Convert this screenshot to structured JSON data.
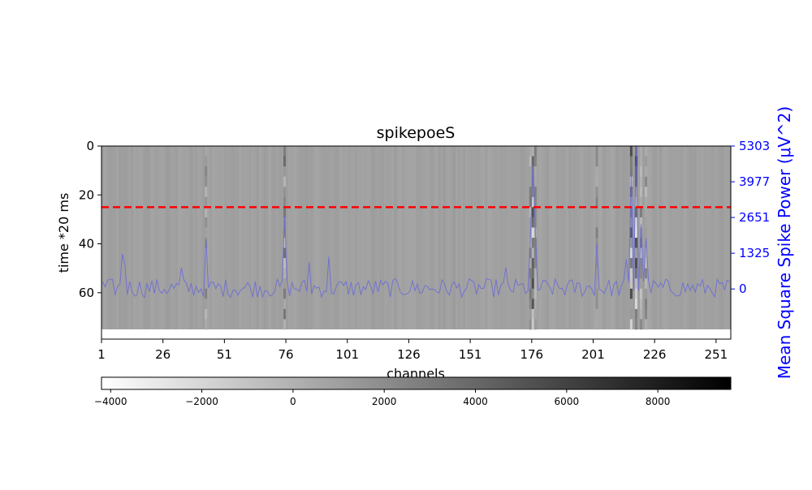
{
  "chart_data": {
    "type": "heatmap",
    "title": "spikepoeS",
    "xlabel": "channels",
    "ylabel": "time *20 ms",
    "y2label": "Mean Square Spike Power (μV^2)",
    "x_ticks": [
      "1",
      "26",
      "51",
      "76",
      "101",
      "126",
      "151",
      "176",
      "201",
      "226",
      "251"
    ],
    "y_ticks": [
      "0",
      "20",
      "40",
      "60"
    ],
    "y2_ticks": [
      "5303",
      "3977",
      "2651",
      "1325",
      "0"
    ],
    "colorbar_ticks": [
      "−4000",
      "−2000",
      "0",
      "2000",
      "4000",
      "6000",
      "8000"
    ],
    "colorbar_range": [
      -4200,
      9600
    ],
    "colormap": "gray_r",
    "xlim": [
      1,
      256
    ],
    "ylim": [
      75,
      0
    ],
    "y2lim": [
      -1500,
      5303
    ],
    "marker_line": {
      "y": 25,
      "color": "#ff0000",
      "style": "dashed"
    },
    "series": [
      {
        "name": "",
        "axis": "right",
        "color": "#6666dd",
        "peaks": [
          {
            "channel": 9,
            "value": 1300
          },
          {
            "channel": 10,
            "value": 900
          },
          {
            "channel": 43,
            "value": 1800
          },
          {
            "channel": 33,
            "value": 800
          },
          {
            "channel": 75,
            "value": 2700
          },
          {
            "channel": 85,
            "value": 1000
          },
          {
            "channel": 93,
            "value": 1200
          },
          {
            "channel": 165,
            "value": 800
          },
          {
            "channel": 175,
            "value": 2000
          },
          {
            "channel": 176,
            "value": 4600
          },
          {
            "channel": 177,
            "value": 2200
          },
          {
            "channel": 202,
            "value": 1700
          },
          {
            "channel": 214,
            "value": 1100
          },
          {
            "channel": 216,
            "value": 4300
          },
          {
            "channel": 218,
            "value": 5300
          },
          {
            "channel": 220,
            "value": 2400
          },
          {
            "channel": 222,
            "value": 1900
          }
        ],
        "baseline": 0,
        "noise": 700
      }
    ],
    "heatmap_base_value": 900
  },
  "colors": {
    "axis_right": "#0000ff",
    "series": "#6666dd",
    "marker": "#ff0000"
  }
}
